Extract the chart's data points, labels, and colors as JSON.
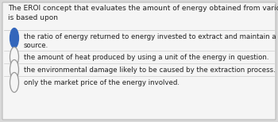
{
  "background_color": "#d8d8d8",
  "card_color": "#f5f5f5",
  "question_text": "The EROI concept that evaluates the amount of energy obtained from various sources\nis based upon",
  "options": [
    "the ratio of energy returned to energy invested to extract and maintain a particular energy\nsource.",
    "the amount of heat produced by using a unit of the energy in question.",
    "the environmental damage likely to be caused by the extraction process.",
    "only the market price of the energy involved."
  ],
  "correct_index": 0,
  "selected_color": "#3366bb",
  "unselected_color": "#f5f5f5",
  "border_color": "#bbbbbb",
  "text_color": "#222222",
  "question_fontsize": 6.5,
  "option_fontsize": 6.2,
  "divider_color": "#cccccc",
  "radio_border_unselected": "#999999"
}
